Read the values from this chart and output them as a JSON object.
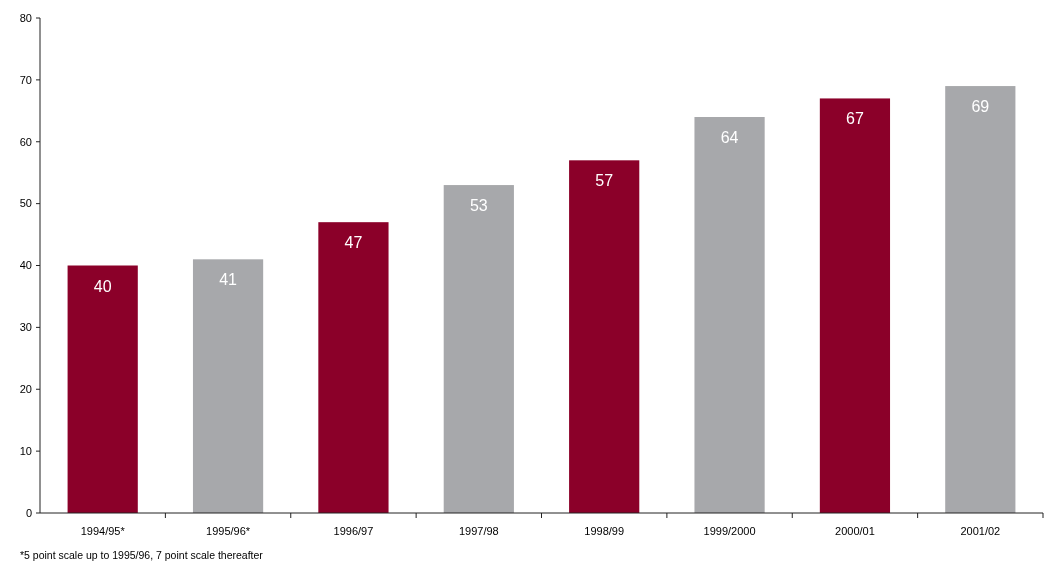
{
  "chart_data": {
    "type": "bar",
    "categories": [
      "1994/95*",
      "1995/96*",
      "1996/97",
      "1997/98",
      "1998/99",
      "1999/2000",
      "2000/01",
      "2001/02"
    ],
    "values": [
      40,
      41,
      47,
      53,
      57,
      64,
      67,
      69
    ],
    "colors": [
      "#8b0029",
      "#a7a8ab",
      "#8b0029",
      "#a7a8ab",
      "#8b0029",
      "#a7a8ab",
      "#8b0029",
      "#a7a8ab"
    ],
    "ylim": [
      0,
      80
    ],
    "yticks": [
      0,
      10,
      20,
      30,
      40,
      50,
      60,
      70,
      80
    ],
    "data_labels": true,
    "annotations": [
      "*5 point scale up to 1995/96, 7 point scale thereafter"
    ]
  }
}
